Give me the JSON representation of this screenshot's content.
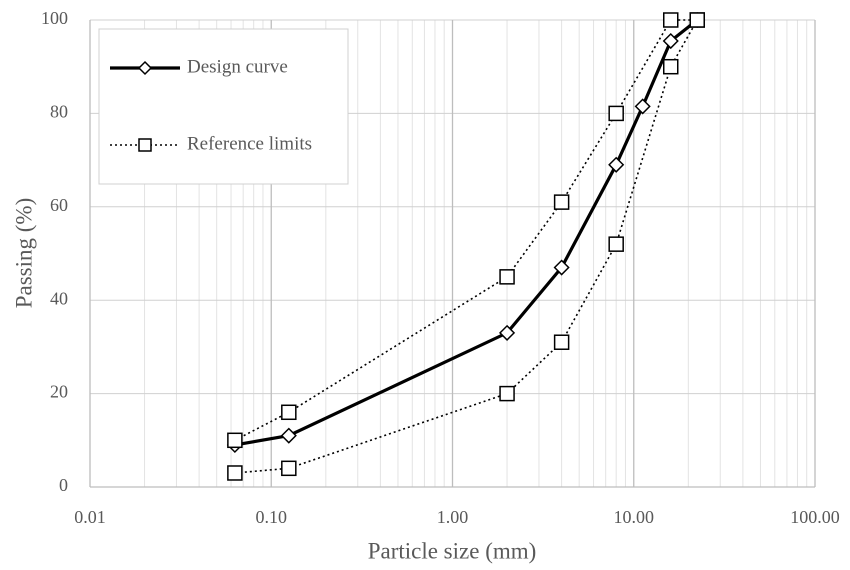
{
  "chart_data": {
    "type": "line",
    "x_label": "Particle size (mm)",
    "y_label": "Passing (%)",
    "xscale": "log",
    "xlim": [
      0.01,
      100
    ],
    "ylim": [
      0,
      100
    ],
    "xticks": [
      {
        "value": 0.01,
        "label": "0.01"
      },
      {
        "value": 0.1,
        "label": "0.10"
      },
      {
        "value": 1,
        "label": "1.00"
      },
      {
        "value": 10,
        "label": "10.00"
      },
      {
        "value": 100,
        "label": "100.00"
      }
    ],
    "yticks": [
      0,
      20,
      40,
      60,
      80,
      100
    ],
    "grid": true,
    "minor_grid": true,
    "legend": "upper left",
    "series": [
      {
        "name": "Design curve",
        "color": "#000000",
        "style": "solid",
        "marker": "diamond",
        "x": [
          0.063,
          0.125,
          2,
          4,
          8,
          11.2,
          16,
          22.4
        ],
        "values": [
          9,
          11,
          33,
          47,
          69,
          81.5,
          95.5,
          100
        ]
      },
      {
        "name": "Reference limits",
        "color": "#000000",
        "style": "dotted",
        "marker": "square",
        "x": [
          0.063,
          0.125,
          2,
          4,
          8,
          16,
          22.4
        ],
        "upper": [
          10,
          16,
          45,
          61,
          80,
          100,
          100
        ],
        "lower": [
          3,
          4,
          20,
          31,
          52,
          90,
          100
        ]
      }
    ]
  }
}
